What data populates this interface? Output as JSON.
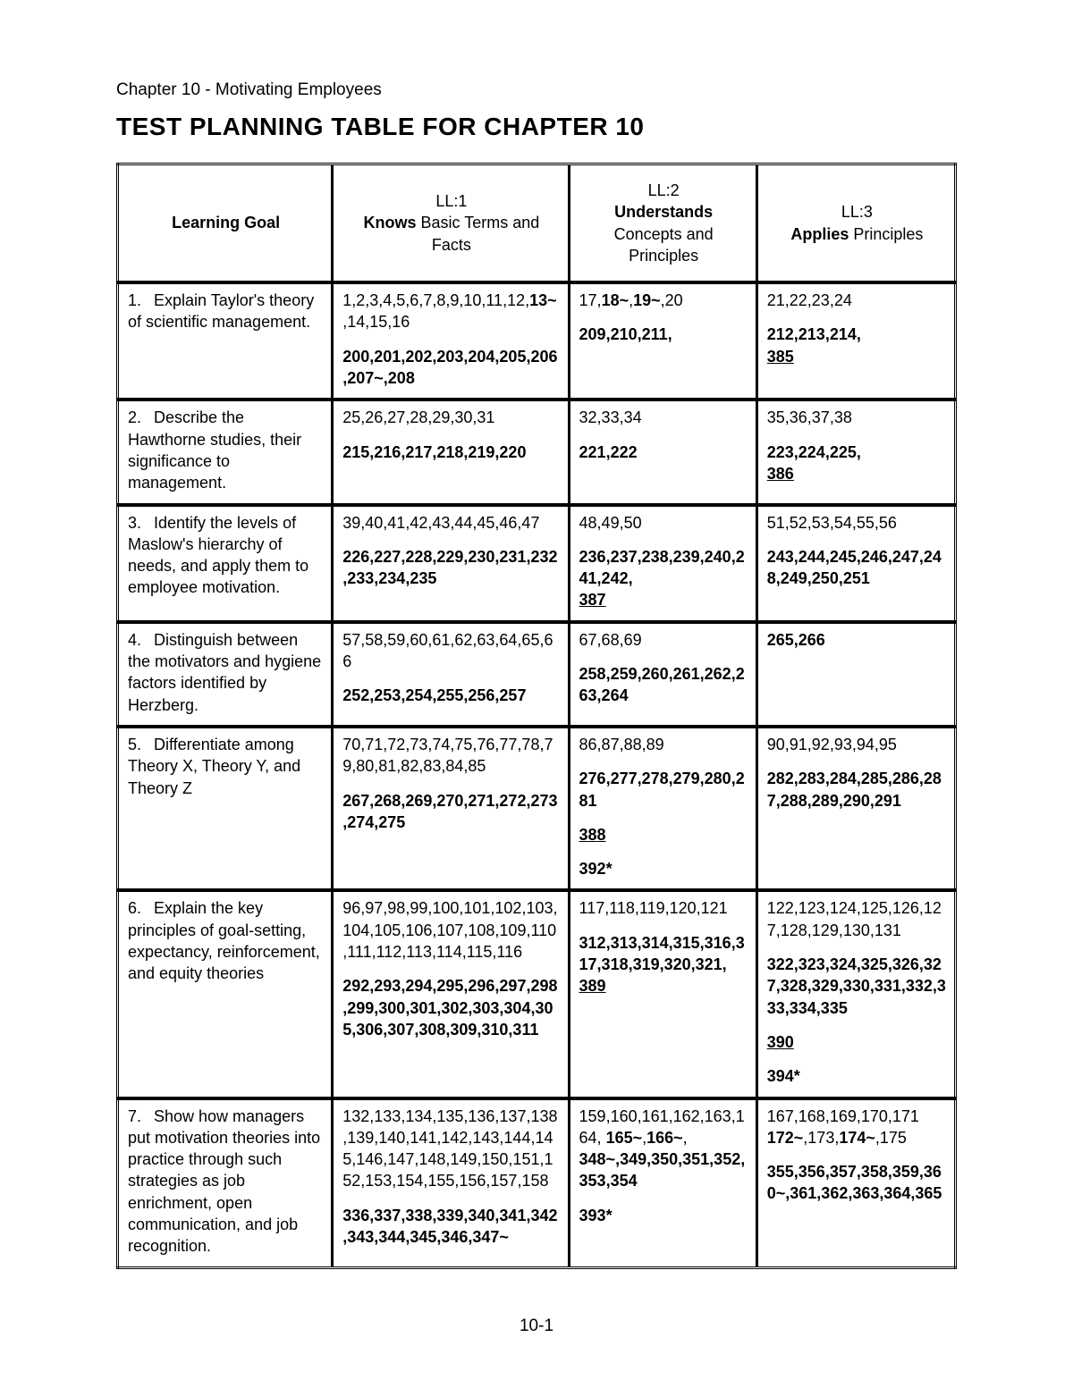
{
  "chapter_line": "Chapter 10 - Motivating Employees",
  "title": "TEST PLANNING TABLE FOR CHAPTER 10",
  "page_number": "10-1",
  "columns": {
    "goal_header": "Learning Goal",
    "ll1": {
      "code": "LL:1",
      "verb": "Knows",
      "rest": " Basic Terms and Facts"
    },
    "ll2": {
      "code": "LL:2",
      "verb": "Understands",
      "rest": " Concepts and Principles"
    },
    "ll3": {
      "code": "LL:3",
      "verb": "Applies",
      "rest": " Principles"
    }
  },
  "rows": [
    {
      "num": "1.",
      "goal": "Explain Taylor's theory of scientific management.",
      "ll1": [
        {
          "segs": [
            {
              "t": "1,2,3,4,5,6,7,8,9,10,11,12,"
            },
            {
              "t": "13~",
              "b": true
            },
            {
              "t": ",14,15,16"
            }
          ]
        },
        {
          "gap": true
        },
        {
          "segs": [
            {
              "t": "200,201,202,203,204,205,206,207~,208",
              "b": true
            }
          ]
        }
      ],
      "ll2": [
        {
          "segs": [
            {
              "t": "17,"
            },
            {
              "t": "18~",
              "b": true
            },
            {
              "t": ","
            },
            {
              "t": "19~",
              "b": true
            },
            {
              "t": ",20"
            }
          ]
        },
        {
          "gap": true
        },
        {
          "segs": [
            {
              "t": "209,210,211,",
              "b": true
            }
          ]
        }
      ],
      "ll3": [
        {
          "segs": [
            {
              "t": "21,22,23,24"
            }
          ]
        },
        {
          "gap": true
        },
        {
          "segs": [
            {
              "t": "212,213,214,",
              "b": true
            }
          ]
        },
        {
          "segs": [
            {
              "t": "385",
              "u": true
            }
          ]
        }
      ]
    },
    {
      "num": "2.",
      "goal": "Describe the Hawthorne studies, their significance to management.",
      "ll1": [
        {
          "segs": [
            {
              "t": "25,26,27,28,29,30,31"
            }
          ]
        },
        {
          "gap": true
        },
        {
          "segs": [
            {
              "t": "215,216,217,218,219,220",
              "b": true
            }
          ]
        }
      ],
      "ll2": [
        {
          "segs": [
            {
              "t": "32,33,34"
            }
          ]
        },
        {
          "gap": true
        },
        {
          "segs": [
            {
              "t": "221,222",
              "b": true
            }
          ]
        }
      ],
      "ll3": [
        {
          "segs": [
            {
              "t": "35,36,37,38"
            }
          ]
        },
        {
          "gap": true
        },
        {
          "segs": [
            {
              "t": "223,224,225,",
              "b": true
            }
          ]
        },
        {
          "segs": [
            {
              "t": "386",
              "u": true
            }
          ]
        }
      ]
    },
    {
      "num": "3.",
      "goal": "Identify the levels of Maslow's hierarchy of needs, and apply them to employee motivation.",
      "ll1": [
        {
          "segs": [
            {
              "t": "39,40,41,42,43,44,45,46,47"
            }
          ]
        },
        {
          "gap": true
        },
        {
          "segs": [
            {
              "t": "226,227,228,229,230,231,232,233,234,235",
              "b": true
            }
          ]
        }
      ],
      "ll2": [
        {
          "segs": [
            {
              "t": "48,49,50"
            }
          ]
        },
        {
          "gap": true
        },
        {
          "segs": [
            {
              "t": "236,237,238,239,240,241,242,",
              "b": true
            }
          ]
        },
        {
          "segs": [
            {
              "t": "387",
              "u": true
            }
          ]
        }
      ],
      "ll3": [
        {
          "segs": [
            {
              "t": "51,52,53,54,55,56"
            }
          ]
        },
        {
          "gap": true
        },
        {
          "segs": [
            {
              "t": "243,244,245,246,247,248,249,250,251",
              "b": true
            }
          ]
        }
      ]
    },
    {
      "num": "4.",
      "goal": "Distinguish between the motivators and hygiene factors identified by Herzberg.",
      "ll1": [
        {
          "segs": [
            {
              "t": "57,58,59,60,61,62,63,64,65,66"
            }
          ]
        },
        {
          "gap": true
        },
        {
          "segs": [
            {
              "t": "252,253,254,255,256,257",
              "b": true
            }
          ]
        }
      ],
      "ll2": [
        {
          "segs": [
            {
              "t": "67,68,69"
            }
          ]
        },
        {
          "gap": true
        },
        {
          "segs": [
            {
              "t": "258,259,260,261,262,263,264",
              "b": true
            }
          ]
        }
      ],
      "ll3": [
        {
          "segs": [
            {
              "t": "265,266",
              "b": true
            }
          ]
        }
      ]
    },
    {
      "num": "5.",
      "goal": "Differentiate among Theory X, Theory Y, and Theory Z",
      "ll1": [
        {
          "segs": [
            {
              "t": "70,71,72,73,74,75,76,77,78,79,80,81,82,83,84,85"
            }
          ]
        },
        {
          "gap": true
        },
        {
          "segs": [
            {
              "t": "267,268,269,270,271,272,273,274,275",
              "b": true
            }
          ]
        }
      ],
      "ll2": [
        {
          "segs": [
            {
              "t": "86,87,88,89"
            }
          ]
        },
        {
          "gap": true
        },
        {
          "segs": [
            {
              "t": "276,277,278,279,280,281",
              "b": true
            }
          ]
        },
        {
          "gap": true
        },
        {
          "segs": [
            {
              "t": "388",
              "u": true
            }
          ]
        },
        {
          "gap": true
        },
        {
          "segs": [
            {
              "t": "392*",
              "b": true
            }
          ]
        }
      ],
      "ll3": [
        {
          "segs": [
            {
              "t": "90,91,92,93,94,95"
            }
          ]
        },
        {
          "gap": true
        },
        {
          "segs": [
            {
              "t": "282,283,284,285,286,287,288,289,290,291",
              "b": true
            }
          ]
        }
      ]
    },
    {
      "num": "6.",
      "goal": "Explain the key principles of goal-setting, expectancy, reinforcement, and equity theories",
      "ll1": [
        {
          "segs": [
            {
              "t": "96,97,98,99,100,101,102,103,104,105,106,107,108,109,110,111,112,113,114,115,116"
            }
          ]
        },
        {
          "gap": true
        },
        {
          "segs": [
            {
              "t": "292,293,294,295,296,297,298,299,300,301,302,303,304,305,306,307,308,309,310,311",
              "b": true
            }
          ]
        }
      ],
      "ll2": [
        {
          "segs": [
            {
              "t": "117,118,119,120,121"
            }
          ]
        },
        {
          "gap": true
        },
        {
          "segs": [
            {
              "t": "312,313,314,315,316,317,318,319,320,321,",
              "b": true
            }
          ]
        },
        {
          "segs": [
            {
              "t": "389",
              "u": true
            }
          ]
        }
      ],
      "ll3": [
        {
          "segs": [
            {
              "t": "122,123,124,125,126,127,128,129,130,131"
            }
          ]
        },
        {
          "gap": true
        },
        {
          "segs": [
            {
              "t": "322,323,324,325,326,327,328,329,330,331,332,333,334,335",
              "b": true
            }
          ]
        },
        {
          "gap": true
        },
        {
          "segs": [
            {
              "t": "390",
              "u": true
            }
          ]
        },
        {
          "gap": true
        },
        {
          "segs": [
            {
              "t": "394*",
              "b": true
            }
          ]
        }
      ]
    },
    {
      "num": "7.",
      "goal": "Show how managers put motivation theories into practice through such strategies as job enrichment, open communication, and job recognition.",
      "ll1": [
        {
          "segs": [
            {
              "t": "132,133,134,135,136,137,138,139,140,141,142,143,144,145,146,147,148,149,150,151,152,153,154,155,156,157,158"
            }
          ]
        },
        {
          "gap": true
        },
        {
          "segs": [
            {
              "t": "336,337,338,339,340,341,342,343,344,345,346,347~",
              "b": true
            }
          ]
        }
      ],
      "ll2": [
        {
          "segs": [
            {
              "t": "159,160,161,162,163,164, "
            },
            {
              "t": "165~",
              "b": true
            },
            {
              "t": ","
            },
            {
              "t": "166~",
              "b": true
            },
            {
              "t": ","
            }
          ]
        },
        {
          "segs": [
            {
              "t": "348~",
              "b": true
            },
            {
              "t": ",349,350,351,352,353,354",
              "b": true
            }
          ]
        },
        {
          "gap": true
        },
        {
          "segs": [
            {
              "t": "393*",
              "b": true
            }
          ]
        }
      ],
      "ll3": [
        {
          "segs": [
            {
              "t": "167,168,169,170,171"
            }
          ]
        },
        {
          "segs": [
            {
              "t": "172~",
              "b": true
            },
            {
              "t": ",173,"
            },
            {
              "t": "174~",
              "b": true
            },
            {
              "t": ",175"
            }
          ]
        },
        {
          "gap": true
        },
        {
          "segs": [
            {
              "t": "355,356,357,358,359,360~,361,362,363,364,365",
              "b": true
            }
          ]
        }
      ]
    }
  ]
}
